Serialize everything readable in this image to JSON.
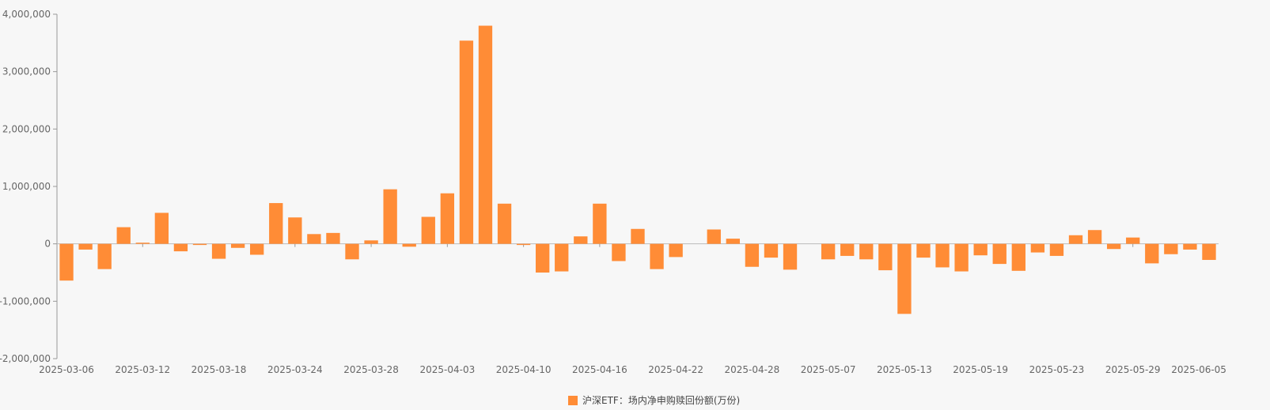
{
  "colors": {
    "bar": "#ff8c36",
    "axis": "#999999",
    "zero_line": "#bbbbbb",
    "background": "#f7f7f7"
  },
  "legend": {
    "label": "沪深ETF：场内净申购赎回份额(万份)",
    "position": "bottom-center"
  },
  "chart_data": {
    "type": "bar",
    "grid": false,
    "ylim": [
      -2000000,
      4000000
    ],
    "yticks": [
      -2000000,
      -1000000,
      0,
      1000000,
      2000000,
      3000000,
      4000000
    ],
    "ytick_labels": [
      "-2,000,000",
      "-1,000,000",
      "0",
      "1,000,000",
      "2,000,000",
      "3,000,000",
      "4,000,000"
    ],
    "xtick_labels": [
      "2025-03-06",
      "2025-03-12",
      "2025-03-18",
      "2025-03-24",
      "2025-03-28",
      "2025-04-03",
      "2025-04-10",
      "2025-04-16",
      "2025-04-22",
      "2025-04-28",
      "2025-05-07",
      "2025-05-13",
      "2025-05-19",
      "2025-05-23",
      "2025-05-29",
      "2025-06-05"
    ],
    "categories": [
      "2025-03-06",
      "2025-03-07",
      "2025-03-10",
      "2025-03-11",
      "2025-03-12",
      "2025-03-13",
      "2025-03-14",
      "2025-03-17",
      "2025-03-18",
      "2025-03-19",
      "2025-03-20",
      "2025-03-21",
      "2025-03-24",
      "2025-03-25",
      "2025-03-26",
      "2025-03-27",
      "2025-03-28",
      "2025-03-31",
      "2025-04-01",
      "2025-04-02",
      "2025-04-03",
      "2025-04-07",
      "2025-04-08",
      "2025-04-09",
      "2025-04-10",
      "2025-04-11",
      "2025-04-14",
      "2025-04-15",
      "2025-04-16",
      "2025-04-17",
      "2025-04-18",
      "2025-04-21",
      "2025-04-22",
      "2025-04-23",
      "2025-04-24",
      "2025-04-25",
      "2025-04-28",
      "2025-04-29",
      "2025-04-30",
      "2025-05-06",
      "2025-05-07",
      "2025-05-08",
      "2025-05-09",
      "2025-05-12",
      "2025-05-13",
      "2025-05-14",
      "2025-05-15",
      "2025-05-16",
      "2025-05-19",
      "2025-05-20",
      "2025-05-21",
      "2025-05-22",
      "2025-05-23",
      "2025-05-26",
      "2025-05-27",
      "2025-05-28",
      "2025-05-29",
      "2025-05-30",
      "2025-06-03",
      "2025-06-04",
      "2025-06-05"
    ],
    "series": [
      {
        "name": "沪深ETF：场内净申购赎回份额(万份)",
        "values": [
          -640000,
          -100000,
          -440000,
          290000,
          20000,
          540000,
          -130000,
          -20000,
          -260000,
          -70000,
          -190000,
          710000,
          460000,
          170000,
          190000,
          -270000,
          60000,
          950000,
          -50000,
          470000,
          880000,
          3540000,
          3800000,
          700000,
          -20000,
          -500000,
          -480000,
          130000,
          700000,
          -300000,
          260000,
          -440000,
          -230000,
          0,
          250000,
          90000,
          -400000,
          -240000,
          -450000,
          0,
          -270000,
          -210000,
          -270000,
          -460000,
          -1220000,
          -240000,
          -410000,
          -480000,
          -200000,
          -350000,
          -470000,
          -150000,
          -210000,
          150000,
          240000,
          -90000,
          110000,
          -340000,
          -180000,
          -100000,
          -280000
        ]
      }
    ]
  }
}
